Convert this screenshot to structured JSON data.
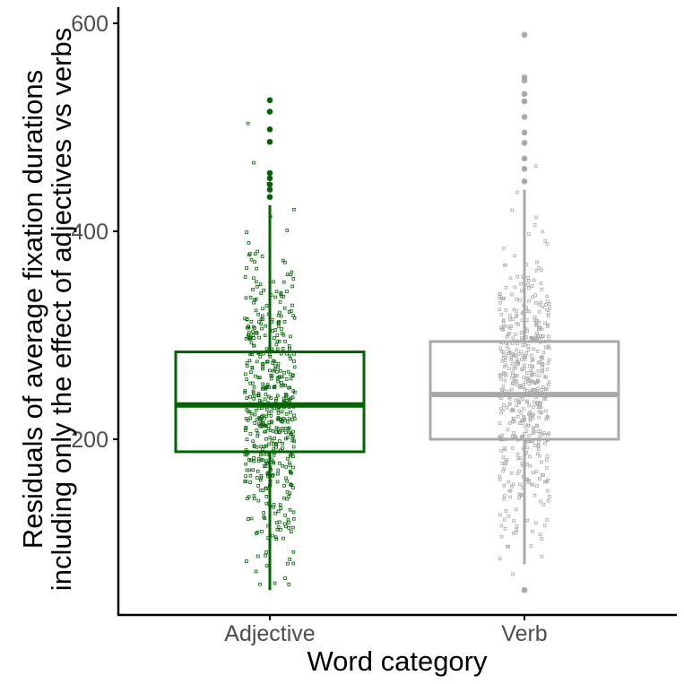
{
  "chart_data": {
    "type": "boxplot",
    "xlabel": "Word category",
    "ylabel_lines": [
      "Residuals of average fixation durations",
      "including only the effect of adjectives vs verbs"
    ],
    "ylim": [
      50,
      615
    ],
    "yticks": [
      200,
      400,
      600
    ],
    "categories": [
      "Adjective",
      "Verb"
    ],
    "grid": false,
    "legend": "none",
    "boxes": [
      {
        "category": "Adjective",
        "color": "#006400",
        "whisker_low": 55,
        "q1": 188,
        "median": 233,
        "q3": 284,
        "whisker_high": 425,
        "outliers": [
          433,
          440,
          445,
          451,
          456,
          486,
          498,
          515,
          526
        ],
        "jitter_range": [
          55,
          526
        ]
      },
      {
        "category": "Verb",
        "color": "#A9A9A9",
        "whisker_low": 80,
        "q1": 200,
        "median": 243,
        "q3": 294,
        "whisker_high": 440,
        "outliers": [
          55,
          448,
          460,
          470,
          485,
          495,
          510,
          525,
          532,
          545,
          548,
          589
        ],
        "jitter_range": [
          55,
          589
        ]
      }
    ]
  }
}
